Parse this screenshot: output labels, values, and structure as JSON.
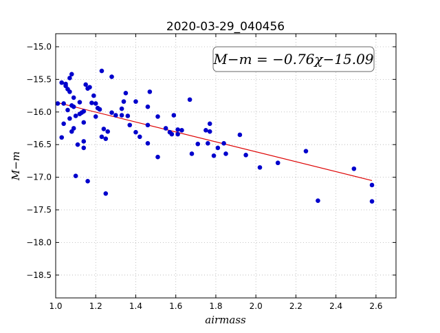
{
  "chart_data": {
    "type": "scatter",
    "title": "2020-03-29_040456",
    "xlabel": "airmass",
    "ylabel": "M−m",
    "xlim": [
      1.0,
      2.7
    ],
    "ylim": [
      -18.85,
      -14.8
    ],
    "y_inverted": true,
    "grid": true,
    "x_ticks": [
      1.0,
      1.2,
      1.4,
      1.6,
      1.8,
      2.0,
      2.2,
      2.4,
      2.6
    ],
    "x_tick_labels": [
      "1.0",
      "1.2",
      "1.4",
      "1.6",
      "1.8",
      "2.0",
      "2.2",
      "2.4",
      "2.6"
    ],
    "y_ticks": [
      -15.0,
      -15.5,
      -16.0,
      -16.5,
      -17.0,
      -17.5,
      -18.0,
      -18.5
    ],
    "y_tick_labels": [
      "−15.0",
      "−15.5",
      "−16.0",
      "−16.5",
      "−17.0",
      "−17.5",
      "−18.0",
      "−18.5"
    ],
    "annotation": "M−m = −0.76χ−15.09",
    "fit_line": {
      "slope": -0.76,
      "intercept": -15.09,
      "x_range": [
        1.0,
        2.58
      ]
    },
    "colors": {
      "points": "#0000cc",
      "fit_line": "#dd0000",
      "grid": "#b0b0b0"
    },
    "series": [
      {
        "points": [
          [
            1.01,
            -15.87
          ],
          [
            1.03,
            -15.55
          ],
          [
            1.04,
            -15.87
          ],
          [
            1.03,
            -16.39
          ],
          [
            1.04,
            -16.18
          ],
          [
            1.05,
            -15.6
          ],
          [
            1.05,
            -15.57
          ],
          [
            1.06,
            -15.65
          ],
          [
            1.06,
            -15.97
          ],
          [
            1.07,
            -15.48
          ],
          [
            1.07,
            -15.69
          ],
          [
            1.08,
            -15.42
          ],
          [
            1.08,
            -15.9
          ],
          [
            1.09,
            -15.92
          ],
          [
            1.09,
            -15.78
          ],
          [
            1.07,
            -16.1
          ],
          [
            1.08,
            -16.3
          ],
          [
            1.09,
            -16.25
          ],
          [
            1.1,
            -16.06
          ],
          [
            1.11,
            -16.5
          ],
          [
            1.1,
            -16.98
          ],
          [
            1.12,
            -16.03
          ],
          [
            1.12,
            -15.85
          ],
          [
            1.13,
            -16.01
          ],
          [
            1.14,
            -15.99
          ],
          [
            1.14,
            -16.16
          ],
          [
            1.14,
            -16.45
          ],
          [
            1.14,
            -16.55
          ],
          [
            1.15,
            -15.58
          ],
          [
            1.16,
            -15.64
          ],
          [
            1.17,
            -15.62
          ],
          [
            1.16,
            -17.06
          ],
          [
            1.18,
            -15.86
          ],
          [
            1.19,
            -15.75
          ],
          [
            1.2,
            -16.07
          ],
          [
            1.2,
            -15.87
          ],
          [
            1.21,
            -15.94
          ],
          [
            1.22,
            -15.96
          ],
          [
            1.23,
            -15.37
          ],
          [
            1.23,
            -16.38
          ],
          [
            1.24,
            -16.26
          ],
          [
            1.25,
            -16.41
          ],
          [
            1.25,
            -17.25
          ],
          [
            1.26,
            -16.3
          ],
          [
            1.28,
            -15.46
          ],
          [
            1.28,
            -16.01
          ],
          [
            1.3,
            -16.05
          ],
          [
            1.33,
            -16.05
          ],
          [
            1.33,
            -15.95
          ],
          [
            1.34,
            -15.84
          ],
          [
            1.35,
            -15.71
          ],
          [
            1.36,
            -16.06
          ],
          [
            1.37,
            -16.2
          ],
          [
            1.4,
            -16.31
          ],
          [
            1.4,
            -15.84
          ],
          [
            1.42,
            -16.38
          ],
          [
            1.46,
            -16.48
          ],
          [
            1.46,
            -15.92
          ],
          [
            1.46,
            -16.2
          ],
          [
            1.47,
            -15.69
          ],
          [
            1.51,
            -16.07
          ],
          [
            1.51,
            -16.69
          ],
          [
            1.55,
            -16.25
          ],
          [
            1.57,
            -16.31
          ],
          [
            1.58,
            -16.34
          ],
          [
            1.59,
            -16.05
          ],
          [
            1.61,
            -16.34
          ],
          [
            1.61,
            -16.27
          ],
          [
            1.63,
            -16.28
          ],
          [
            1.67,
            -15.81
          ],
          [
            1.68,
            -16.64
          ],
          [
            1.71,
            -16.49
          ],
          [
            1.75,
            -16.28
          ],
          [
            1.76,
            -16.48
          ],
          [
            1.77,
            -16.18
          ],
          [
            1.77,
            -16.3
          ],
          [
            1.79,
            -16.67
          ],
          [
            1.81,
            -16.55
          ],
          [
            1.84,
            -16.48
          ],
          [
            1.85,
            -16.64
          ],
          [
            1.92,
            -16.35
          ],
          [
            1.95,
            -16.66
          ],
          [
            2.02,
            -16.85
          ],
          [
            2.11,
            -16.78
          ],
          [
            2.25,
            -16.6
          ],
          [
            2.31,
            -17.36
          ],
          [
            2.49,
            -16.87
          ],
          [
            2.58,
            -17.12
          ],
          [
            2.58,
            -17.37
          ]
        ]
      }
    ]
  }
}
